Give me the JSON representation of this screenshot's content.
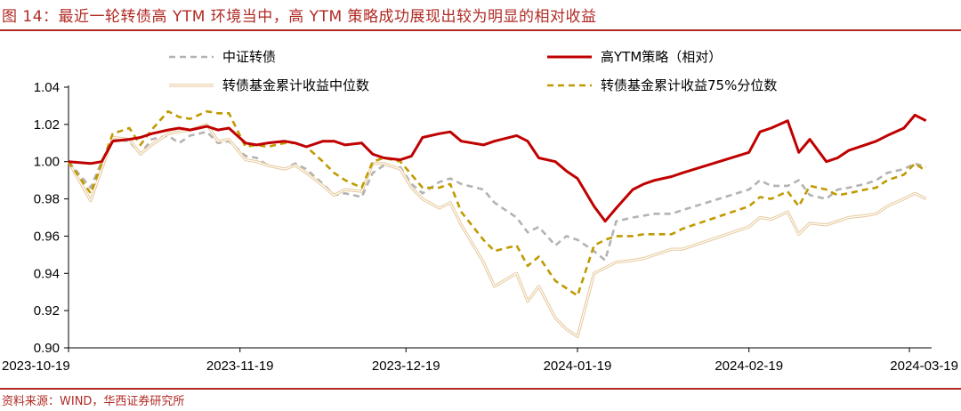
{
  "title": "图 14：最近一轮转债高 YTM 环境当中，高 YTM 策略成功展现出较为明显的相对收益",
  "source": "资料来源：WIND，华西证券研究所",
  "colors": {
    "accent": "#b02a24",
    "index_series": "#b3b3b3",
    "ytm_series": "#c00000",
    "median_series": "#e6c89a",
    "p75_series": "#c09a00"
  },
  "chart_data": {
    "type": "line",
    "title": "",
    "xlabel": "",
    "ylabel": "",
    "ylim": [
      0.9,
      1.04
    ],
    "yticks": [
      "0.90",
      "0.92",
      "0.94",
      "0.96",
      "0.98",
      "1.00",
      "1.02",
      "1.04"
    ],
    "xticks": [
      "2023-10-19",
      "2023-11-19",
      "2023-12-19",
      "2024-01-19",
      "2024-02-19",
      "2024-03-19"
    ],
    "grid": false,
    "legend": "top",
    "x": [
      "2023-10-19",
      "2023-10-23",
      "2023-10-25",
      "2023-10-27",
      "2023-10-30",
      "2023-11-01",
      "2023-11-03",
      "2023-11-06",
      "2023-11-08",
      "2023-11-10",
      "2023-11-13",
      "2023-11-15",
      "2023-11-17",
      "2023-11-20",
      "2023-11-22",
      "2023-11-24",
      "2023-11-27",
      "2023-11-29",
      "2023-12-01",
      "2023-12-04",
      "2023-12-06",
      "2023-12-08",
      "2023-12-11",
      "2023-12-13",
      "2023-12-15",
      "2023-12-18",
      "2023-12-20",
      "2023-12-22",
      "2023-12-25",
      "2023-12-27",
      "2023-12-29",
      "2024-01-02",
      "2024-01-04",
      "2024-01-08",
      "2024-01-10",
      "2024-01-12",
      "2024-01-15",
      "2024-01-17",
      "2024-01-19",
      "2024-01-22",
      "2024-01-24",
      "2024-01-26",
      "2024-01-29",
      "2024-01-31",
      "2024-02-02",
      "2024-02-05",
      "2024-02-07",
      "2024-02-19",
      "2024-02-21",
      "2024-02-23",
      "2024-02-26",
      "2024-02-28",
      "2024-03-01",
      "2024-03-04",
      "2024-03-06",
      "2024-03-08",
      "2024-03-11",
      "2024-03-13",
      "2024-03-15",
      "2024-03-18",
      "2024-03-20",
      "2024-03-22"
    ],
    "series": [
      {
        "name": "中证转债",
        "style": "dashed",
        "color": "#b3b3b3",
        "values": [
          1.0,
          0.986,
          1.0,
          1.012,
          1.011,
          1.004,
          1.012,
          1.014,
          1.01,
          1.014,
          1.016,
          1.01,
          1.011,
          1.003,
          1.002,
          0.998,
          0.996,
          0.999,
          0.996,
          0.988,
          0.982,
          0.983,
          0.981,
          0.994,
          0.998,
          0.997,
          0.988,
          0.983,
          0.989,
          0.991,
          0.988,
          0.985,
          0.978,
          0.97,
          0.962,
          0.965,
          0.955,
          0.96,
          0.958,
          0.952,
          0.947,
          0.968,
          0.97,
          0.971,
          0.972,
          0.972,
          0.974,
          0.985,
          0.99,
          0.987,
          0.987,
          0.99,
          0.982,
          0.98,
          0.985,
          0.986,
          0.988,
          0.99,
          0.994,
          0.996,
          0.999,
          0.997
        ]
      },
      {
        "name": "高YTM策略（相对）",
        "style": "solid",
        "color": "#c00000",
        "values": [
          1.0,
          0.999,
          1.0,
          1.011,
          1.012,
          1.013,
          1.015,
          1.017,
          1.018,
          1.017,
          1.019,
          1.017,
          1.018,
          1.01,
          1.009,
          1.01,
          1.011,
          1.01,
          1.008,
          1.011,
          1.011,
          1.009,
          1.01,
          1.004,
          1.002,
          1.001,
          1.003,
          1.013,
          1.015,
          1.016,
          1.011,
          1.009,
          1.011,
          1.014,
          1.011,
          1.002,
          1.0,
          0.995,
          0.991,
          0.976,
          0.968,
          0.975,
          0.985,
          0.988,
          0.99,
          0.992,
          0.994,
          1.005,
          1.016,
          1.018,
          1.022,
          1.005,
          1.012,
          1.0,
          1.002,
          1.006,
          1.009,
          1.011,
          1.014,
          1.018,
          1.025,
          1.022
        ]
      },
      {
        "name": "转债基金累计收益中位数",
        "style": "double",
        "color": "#e6c89a",
        "values": [
          1.0,
          0.979,
          0.996,
          1.013,
          1.012,
          1.004,
          1.009,
          1.015,
          1.016,
          1.017,
          1.02,
          1.011,
          1.012,
          1.001,
          1.0,
          0.998,
          0.996,
          0.998,
          0.994,
          0.987,
          0.982,
          0.985,
          0.984,
          0.999,
          0.999,
          0.996,
          0.986,
          0.98,
          0.975,
          0.978,
          0.966,
          0.946,
          0.933,
          0.94,
          0.925,
          0.933,
          0.916,
          0.91,
          0.906,
          0.94,
          0.943,
          0.946,
          0.947,
          0.948,
          0.95,
          0.953,
          0.953,
          0.965,
          0.97,
          0.969,
          0.973,
          0.961,
          0.967,
          0.966,
          0.968,
          0.97,
          0.971,
          0.972,
          0.976,
          0.98,
          0.983,
          0.98
        ]
      },
      {
        "name": "转债基金累计收益75%分位数",
        "style": "dashed",
        "color": "#c09a00",
        "values": [
          1.0,
          0.983,
          0.999,
          1.015,
          1.018,
          1.009,
          1.017,
          1.027,
          1.024,
          1.023,
          1.027,
          1.026,
          1.026,
          1.008,
          1.009,
          1.008,
          1.01,
          1.01,
          1.008,
          1.0,
          0.994,
          0.99,
          0.986,
          1.0,
          1.002,
          1.0,
          0.993,
          0.986,
          0.986,
          0.988,
          0.973,
          0.958,
          0.952,
          0.955,
          0.944,
          0.949,
          0.936,
          0.932,
          0.928,
          0.955,
          0.958,
          0.96,
          0.96,
          0.961,
          0.961,
          0.961,
          0.964,
          0.976,
          0.981,
          0.98,
          0.984,
          0.976,
          0.987,
          0.985,
          0.982,
          0.983,
          0.985,
          0.986,
          0.99,
          0.993,
          0.999,
          0.995
        ]
      }
    ]
  }
}
